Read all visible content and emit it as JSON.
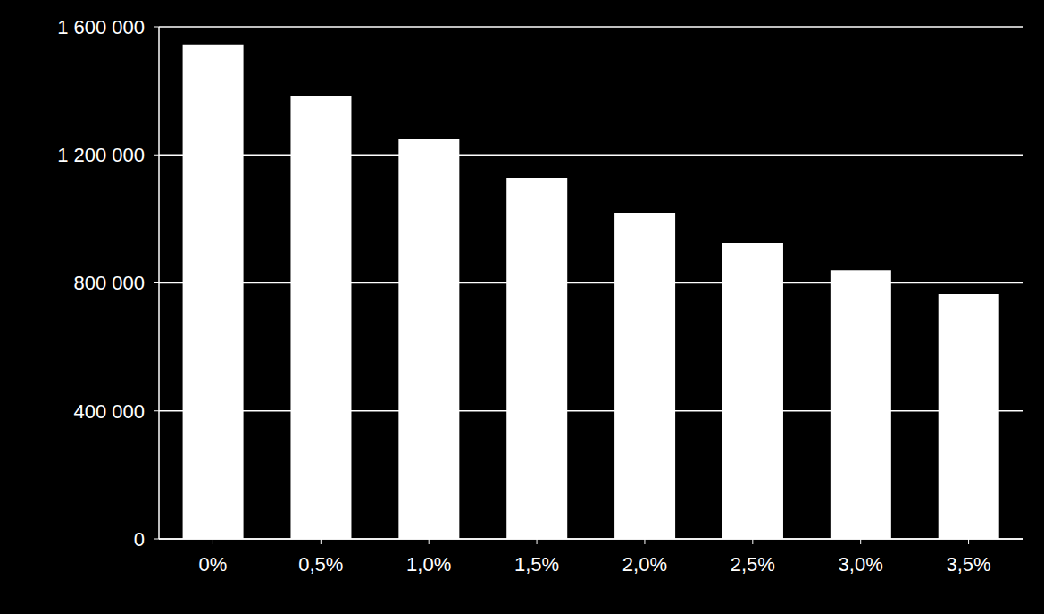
{
  "chart_data": {
    "type": "bar",
    "categories": [
      "0%",
      "0,5%",
      "1,0%",
      "1,5%",
      "2,0%",
      "2,5%",
      "3,0%",
      "3,5%"
    ],
    "values": [
      1545000,
      1385000,
      1250000,
      1128000,
      1019000,
      924000,
      840000,
      765000
    ],
    "color": "#ffffff",
    "ylim": [
      0,
      1600000
    ],
    "yticks": [
      0,
      {
        "value": 400000,
        "label": "400 000"
      },
      {
        "value": 800000,
        "label": "800 000"
      },
      {
        "value": 1200000,
        "label": "1 200 000"
      },
      {
        "value": 1600000,
        "label": "1 600 000"
      }
    ],
    "grid": true
  }
}
